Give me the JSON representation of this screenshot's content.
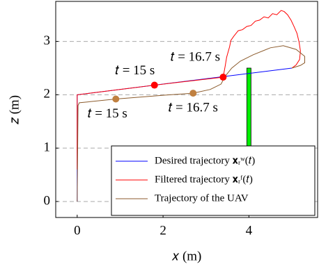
{
  "chart_data": {
    "type": "line",
    "xlabel": "𝑥 (m)",
    "ylabel": "𝑧 (m)",
    "xlim": [
      -0.5,
      5.6
    ],
    "ylim": [
      -0.3,
      3.75
    ],
    "xticks": [
      0,
      2,
      4
    ],
    "yticks": [
      0,
      1,
      2,
      3
    ],
    "grid": true,
    "legend": "lower right",
    "series": [
      {
        "name": "Desired trajectory 𝐱ᵣʷ(𝑡)",
        "color": "#0000ff",
        "x": [
          0,
          0,
          5.0
        ],
        "y": [
          0,
          2,
          2.5
        ]
      },
      {
        "name": "Filtered trajectory 𝐱ᵣᶠ(𝑡)",
        "color": "#ff0000",
        "x": [
          0,
          0,
          1.8,
          3.4,
          3.45,
          3.48,
          3.55,
          3.58,
          3.65,
          3.75,
          3.85,
          3.95,
          4.05,
          4.15,
          4.25,
          4.35,
          4.45,
          4.55,
          4.65,
          4.75,
          4.82,
          4.9,
          4.98,
          5.05,
          5.12,
          5.17,
          5.2,
          5.18,
          5.1,
          5.0
        ],
        "y": [
          0.6,
          2,
          2.18,
          2.33,
          2.55,
          2.7,
          2.9,
          3.02,
          3.1,
          3.2,
          3.22,
          3.28,
          3.3,
          3.38,
          3.4,
          3.46,
          3.44,
          3.52,
          3.5,
          3.58,
          3.56,
          3.5,
          3.4,
          3.28,
          3.15,
          2.98,
          2.82,
          2.66,
          2.56,
          2.5
        ]
      },
      {
        "name": "Trajectory of the UAV",
        "color": "#8b5a2b",
        "x": [
          0,
          0.02,
          0.05,
          0.9,
          2,
          2.7,
          3.1,
          3.35,
          3.45,
          3.6,
          3.8,
          4.1,
          4.5,
          4.8,
          5.1,
          5.3,
          5.3,
          5.2,
          5.0
        ],
        "y": [
          0,
          1.8,
          1.85,
          1.92,
          1.99,
          2.03,
          2.1,
          2.2,
          2.35,
          2.5,
          2.63,
          2.75,
          2.88,
          2.92,
          2.85,
          2.72,
          2.6,
          2.55,
          2.5
        ]
      }
    ],
    "points": [
      {
        "x": 1.8,
        "y": 2.18,
        "label": "𝑡 = 15 s",
        "color": "#ff0000"
      },
      {
        "x": 3.4,
        "y": 2.33,
        "label": "𝑡 = 16.7 s",
        "color": "#ff0000"
      },
      {
        "x": 0.9,
        "y": 1.92,
        "label": "𝑡 = 15 s",
        "color": "#c08040"
      },
      {
        "x": 2.7,
        "y": 2.03,
        "label": "𝑡 = 16.7 s",
        "color": "#c08040"
      }
    ],
    "obstacle": {
      "x": 4,
      "value": 2.5,
      "color": "#00ee00"
    }
  }
}
